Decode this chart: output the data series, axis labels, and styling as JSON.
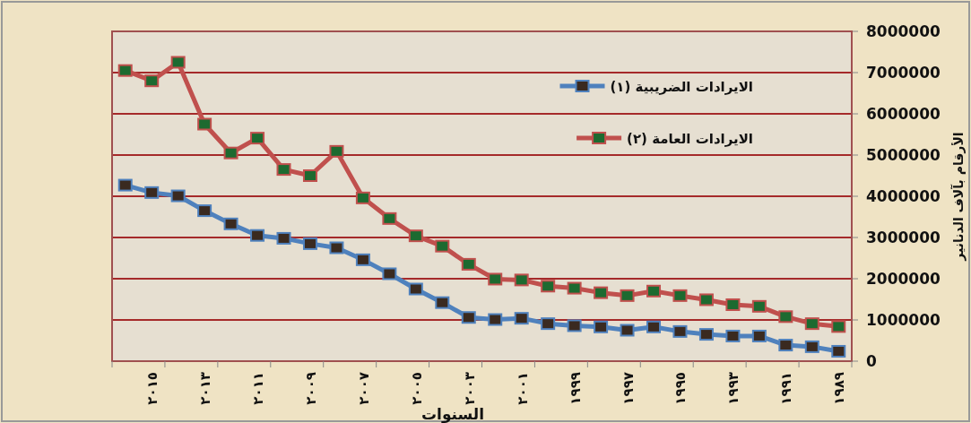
{
  "chart_data": {
    "type": "line",
    "xlabel": "السنوات",
    "ylabel": "الأرقام بآلاف الدنانير",
    "categories": [
      null,
      "٢٠١٥",
      null,
      "٢٠١٣",
      null,
      "٢٠١١",
      null,
      "٢٠٠٩",
      null,
      "٢٠٠٧",
      null,
      "٢٠٠٥",
      null,
      "٢٠٠٣",
      null,
      "٢٠٠١",
      null,
      "١٩٩٩",
      null,
      "١٩٩٧",
      null,
      "١٩٩٥",
      null,
      "١٩٩٣",
      null,
      "١٩٩١",
      null,
      "١٩٨٩"
    ],
    "series": [
      {
        "name": "الايرادات الضريبية (١)",
        "color": "#4f81bd",
        "values": [
          4270000,
          4090000,
          4010000,
          3650000,
          3330000,
          3050000,
          2980000,
          2850000,
          2750000,
          2460000,
          2120000,
          1750000,
          1420000,
          1060000,
          1010000,
          1040000,
          910000,
          860000,
          830000,
          750000,
          830000,
          720000,
          650000,
          610000,
          610000,
          390000,
          350000,
          240000
        ]
      },
      {
        "name": "الايرادات العامة (٢)",
        "color": "#c0504d",
        "values": [
          7050000,
          6800000,
          7250000,
          5750000,
          5050000,
          5410000,
          4650000,
          4500000,
          5090000,
          3960000,
          3460000,
          3040000,
          2790000,
          2350000,
          1990000,
          1970000,
          1820000,
          1770000,
          1660000,
          1590000,
          1700000,
          1590000,
          1490000,
          1370000,
          1330000,
          1080000,
          910000,
          840000
        ]
      }
    ],
    "ylim": [
      0,
      8000000
    ],
    "yticks": [
      0,
      1000000,
      2000000,
      3000000,
      4000000,
      5000000,
      6000000,
      7000000,
      8000000
    ],
    "grid": "y",
    "legend": "top right",
    "marker": "square",
    "line_style": "solid"
  }
}
